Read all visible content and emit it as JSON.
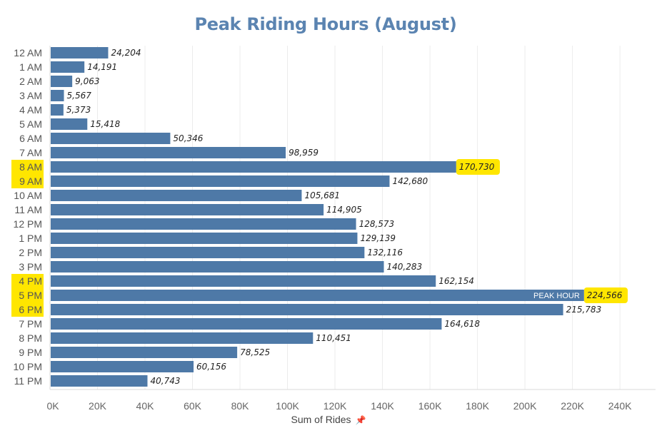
{
  "chart_data": {
    "type": "bar",
    "orientation": "horizontal",
    "title": "Peak Riding Hours (August)",
    "xlabel": "Sum of Rides",
    "categories": [
      "12 AM",
      "1 AM",
      "2 AM",
      "3 AM",
      "4 AM",
      "5 AM",
      "6 AM",
      "7 AM",
      "8 AM",
      "9 AM",
      "10 AM",
      "11 AM",
      "12 PM",
      "1 PM",
      "2 PM",
      "3 PM",
      "4 PM",
      "5 PM",
      "6 PM",
      "7 PM",
      "8 PM",
      "9 PM",
      "10 PM",
      "11 PM"
    ],
    "values": [
      24204,
      14191,
      9063,
      5567,
      5373,
      15418,
      50346,
      98959,
      170730,
      142680,
      105681,
      114905,
      128573,
      129139,
      132116,
      140283,
      162154,
      224566,
      215783,
      164618,
      110451,
      78525,
      60156,
      40743
    ],
    "value_labels": [
      "24,204",
      "14,191",
      "9,063",
      "5,567",
      "5,373",
      "15,418",
      "50,346",
      "98,959",
      "170,730",
      "142,680",
      "105,681",
      "114,905",
      "128,573",
      "129,139",
      "132,116",
      "140,283",
      "162,154",
      "224,566",
      "215,783",
      "164,618",
      "110,451",
      "78,525",
      "60,156",
      "40,743"
    ],
    "xlim": [
      0,
      255000
    ],
    "x_ticks": [
      0,
      20000,
      40000,
      60000,
      80000,
      100000,
      120000,
      140000,
      160000,
      180000,
      200000,
      220000,
      240000
    ],
    "x_tick_labels": [
      "0K",
      "20K",
      "40K",
      "60K",
      "80K",
      "100K",
      "120K",
      "140K",
      "160K",
      "180K",
      "200K",
      "220K",
      "240K"
    ],
    "highlighted_categories": [
      "8 AM",
      "9 AM",
      "4 PM",
      "5 PM",
      "6 PM"
    ],
    "highlighted_value_labels": [
      "170,730",
      "224,566"
    ],
    "annotation": {
      "category": "5 PM",
      "text": "PEAK HOUR"
    },
    "grid": "vertical",
    "colors": {
      "bar": "#4e79a7",
      "title": "#5b84b1",
      "highlight": "#ffe600"
    }
  },
  "axis_pin_icon": "pin-icon"
}
